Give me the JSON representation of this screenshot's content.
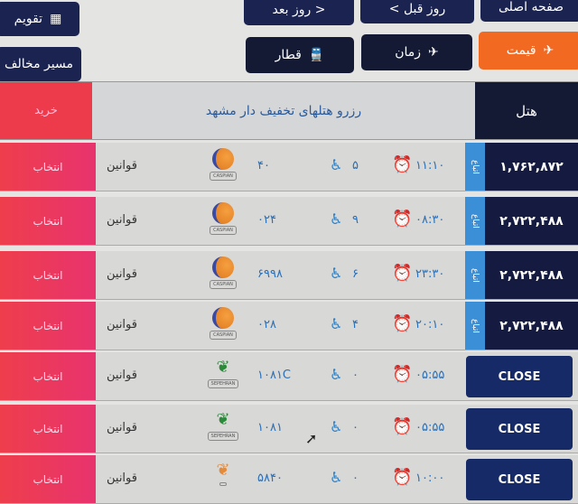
{
  "nav": {
    "home": "صفحه اصلی",
    "prev_day": "< روز قبل",
    "next_day": "روز بعد >",
    "calendar": "تقویم",
    "reverse_route": "مسیر مخالف"
  },
  "sort": {
    "price": "قیمت",
    "time": "زمان",
    "train": "قطار",
    "active": "price"
  },
  "hotel": {
    "label": "هتل",
    "text": "رزرو هتلهای تخفیف دار مشهد",
    "buy": "خرید"
  },
  "colors": {
    "accent": "#f26a22",
    "primary": "#1b2350",
    "buy": "#ee3b4b"
  },
  "flights": [
    {
      "price": "۱,۷۶۲,۸۷۲",
      "tab": "اتباع",
      "time": "۱۱:۱۰",
      "seats": "۵",
      "flight": "۴۰",
      "airline": "CASPIAN",
      "rules": "قوانین",
      "select": "انتخاب"
    },
    {
      "price": "۲,۷۲۲,۴۸۸",
      "tab": "اتباع",
      "time": "۰۸:۳۰",
      "seats": "۹",
      "flight": "۰۲۴",
      "airline": "CASPIAN",
      "rules": "قوانین",
      "select": "انتخاب"
    },
    {
      "price": "۲,۷۲۲,۴۸۸",
      "tab": "اتباع",
      "time": "۲۳:۳۰",
      "seats": "۶",
      "flight": "۶۹۹۸",
      "airline": "CASPIAN",
      "rules": "قوانین",
      "select": "انتخاب"
    },
    {
      "price": "۲,۷۲۲,۴۸۸",
      "tab": "اتباع",
      "time": "۲۰:۱۰",
      "seats": "۴",
      "flight": "۰۲۸",
      "airline": "CASPIAN",
      "rules": "قوانین",
      "select": "انتخاب"
    },
    {
      "price": "CLOSE",
      "time": "۰۵:۵۵",
      "seats": "۰",
      "flight": "۱۰۸۱C",
      "airline": "SEPEHRAN",
      "rules": "قوانین",
      "select": "انتخاب"
    },
    {
      "price": "CLOSE",
      "time": "۰۵:۵۵",
      "seats": "۰",
      "flight": "۱۰۸۱",
      "airline": "SEPEHRAN",
      "rules": "قوانین",
      "select": "انتخاب"
    },
    {
      "price": "CLOSE",
      "time": "۱۰:۰۰",
      "seats": "۰",
      "flight": "۵۸۴۰",
      "airline": "",
      "rules": "قوانین",
      "select": "انتخاب"
    }
  ]
}
